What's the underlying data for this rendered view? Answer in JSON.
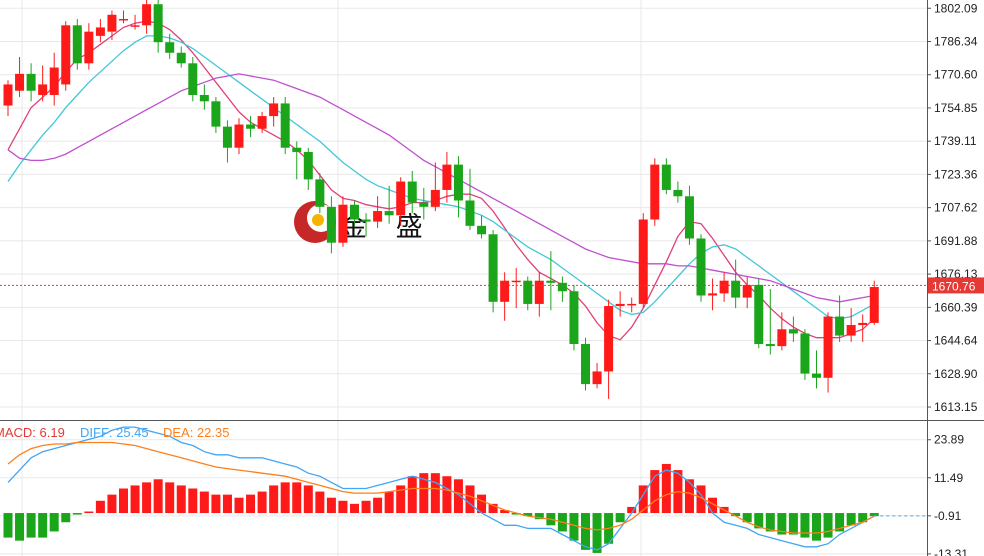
{
  "colors": {
    "up": "#ff1a1a",
    "down": "#1aa51a",
    "ma_short": "#e0407a",
    "ma_mid": "#42c7d9",
    "ma_long": "#c04fd0",
    "diff": "#42a5f5",
    "dea": "#ff7f1a",
    "grid": "#e8e8e8",
    "price_line": "#e53935",
    "axis": "#555555"
  },
  "watermark": {
    "icon": "coin-swirl-icon",
    "text": "金 盛"
  },
  "macd_legend": {
    "macd": "MACD: 6.19",
    "diff": "DIFF: 25.45",
    "dea": "DEA: 22.35"
  },
  "chart_data": [
    {
      "type": "candlestick",
      "y_ticks": [
        "1802.09",
        "1786.34",
        "1770.60",
        "1754.85",
        "1739.11",
        "1723.36",
        "1707.62",
        "1691.88",
        "1676.13",
        "1660.39",
        "1644.64",
        "1628.90",
        "1613.15"
      ],
      "ylim": [
        1607,
        1806
      ],
      "current_price": "1670.76",
      "candles": [
        [
          1756,
          1766,
          1751,
          1768
        ],
        [
          1763,
          1771,
          1760,
          1779
        ],
        [
          1771,
          1763,
          1758,
          1776
        ],
        [
          1761,
          1766,
          1758,
          1775
        ],
        [
          1761,
          1774,
          1756,
          1781
        ],
        [
          1766,
          1794,
          1763,
          1796
        ],
        [
          1794,
          1776,
          1773,
          1797
        ],
        [
          1776,
          1791,
          1773,
          1795
        ],
        [
          1789,
          1793,
          1786,
          1797
        ],
        [
          1791,
          1799,
          1787,
          1801
        ],
        [
          1797,
          1797,
          1795,
          1801
        ],
        [
          1794,
          1794,
          1792,
          1799
        ],
        [
          1794,
          1804,
          1790,
          1808
        ],
        [
          1804,
          1786,
          1781,
          1809
        ],
        [
          1786,
          1781,
          1778,
          1790
        ],
        [
          1781,
          1776,
          1774,
          1784
        ],
        [
          1776,
          1761,
          1758,
          1779
        ],
        [
          1761,
          1758,
          1754,
          1766
        ],
        [
          1758,
          1746,
          1743,
          1760
        ],
        [
          1746,
          1736,
          1729,
          1749
        ],
        [
          1736,
          1747,
          1733,
          1750
        ],
        [
          1747,
          1745,
          1741,
          1751
        ],
        [
          1745,
          1751,
          1743,
          1753
        ],
        [
          1751,
          1757,
          1746,
          1760
        ],
        [
          1757,
          1736,
          1733,
          1760
        ],
        [
          1736,
          1734,
          1721,
          1739
        ],
        [
          1734,
          1721,
          1716,
          1736
        ],
        [
          1721,
          1708,
          1705,
          1724
        ],
        [
          1708,
          1691,
          1686,
          1713
        ],
        [
          1691,
          1709,
          1689,
          1713
        ],
        [
          1709,
          1702,
          1699,
          1711
        ],
        [
          1702,
          1701,
          1694,
          1705
        ],
        [
          1701,
          1706,
          1698,
          1713
        ],
        [
          1706,
          1704,
          1700,
          1718
        ],
        [
          1704,
          1720,
          1699,
          1722
        ],
        [
          1720,
          1710,
          1705,
          1725
        ],
        [
          1710,
          1708,
          1702,
          1717
        ],
        [
          1708,
          1716,
          1706,
          1729
        ],
        [
          1716,
          1728,
          1710,
          1734
        ],
        [
          1728,
          1711,
          1703,
          1732
        ],
        [
          1711,
          1699,
          1697,
          1726
        ],
        [
          1699,
          1695,
          1693,
          1704
        ],
        [
          1695,
          1663,
          1658,
          1697
        ],
        [
          1663,
          1673,
          1654,
          1677
        ],
        [
          1673,
          1673,
          1660,
          1679
        ],
        [
          1673,
          1662,
          1659,
          1675
        ],
        [
          1662,
          1673,
          1656,
          1677
        ],
        [
          1673,
          1672,
          1659,
          1687
        ],
        [
          1672,
          1668,
          1663,
          1675
        ],
        [
          1668,
          1643,
          1640,
          1671
        ],
        [
          1643,
          1624,
          1621,
          1646
        ],
        [
          1624,
          1630,
          1622,
          1634
        ],
        [
          1630,
          1661,
          1617,
          1664
        ],
        [
          1661,
          1662,
          1656,
          1668
        ],
        [
          1662,
          1662,
          1658,
          1665
        ],
        [
          1662,
          1702,
          1660,
          1705
        ],
        [
          1702,
          1728,
          1699,
          1731
        ],
        [
          1728,
          1716,
          1714,
          1731
        ],
        [
          1716,
          1713,
          1710,
          1720
        ],
        [
          1713,
          1693,
          1690,
          1718
        ],
        [
          1693,
          1666,
          1663,
          1695
        ],
        [
          1666,
          1667,
          1659,
          1674
        ],
        [
          1667,
          1673,
          1663,
          1677
        ],
        [
          1673,
          1665,
          1660,
          1683
        ],
        [
          1665,
          1671,
          1660,
          1675
        ],
        [
          1671,
          1643,
          1641,
          1674
        ],
        [
          1643,
          1642,
          1638,
          1669
        ],
        [
          1642,
          1650,
          1640,
          1658
        ],
        [
          1650,
          1648,
          1644,
          1656
        ],
        [
          1648,
          1629,
          1626,
          1650
        ],
        [
          1629,
          1627,
          1622,
          1640
        ],
        [
          1627,
          1656,
          1620,
          1658
        ],
        [
          1656,
          1647,
          1644,
          1666
        ],
        [
          1647,
          1652,
          1644,
          1660
        ],
        [
          1652,
          1653,
          1644,
          1657
        ],
        [
          1653,
          1670,
          1652,
          1673
        ]
      ],
      "ma_short": [
        1735,
        1745,
        1755,
        1760,
        1765,
        1772,
        1778,
        1781,
        1785,
        1789,
        1793,
        1795,
        1796,
        1795,
        1792,
        1787,
        1781,
        1774,
        1767,
        1760,
        1753,
        1748,
        1745,
        1742,
        1739,
        1735,
        1730,
        1723,
        1716,
        1712,
        1711,
        1709,
        1708,
        1707,
        1708,
        1710,
        1710,
        1711,
        1713,
        1714,
        1714,
        1712,
        1706,
        1698,
        1690,
        1683,
        1677,
        1674,
        1671,
        1667,
        1661,
        1653,
        1647,
        1645,
        1651,
        1660,
        1671,
        1682,
        1694,
        1701,
        1700,
        1693,
        1685,
        1677,
        1671,
        1666,
        1660,
        1655,
        1651,
        1648,
        1646,
        1646,
        1646,
        1648,
        1650,
        1655
      ],
      "ma_mid": [
        1720,
        1728,
        1735,
        1742,
        1748,
        1755,
        1761,
        1767,
        1772,
        1777,
        1782,
        1786,
        1789,
        1789,
        1788,
        1786,
        1783,
        1779,
        1775,
        1771,
        1767,
        1763,
        1759,
        1755,
        1751,
        1747,
        1743,
        1739,
        1734,
        1729,
        1725,
        1721,
        1718,
        1716,
        1714,
        1712,
        1711,
        1710,
        1709,
        1708,
        1706,
        1704,
        1701,
        1697,
        1693,
        1689,
        1686,
        1683,
        1679,
        1675,
        1671,
        1667,
        1663,
        1659,
        1657,
        1658,
        1663,
        1669,
        1675,
        1681,
        1686,
        1689,
        1690,
        1688,
        1684,
        1680,
        1676,
        1672,
        1668,
        1664,
        1660,
        1656,
        1655,
        1656,
        1659,
        1662
      ],
      "ma_long": [
        1735,
        1731,
        1730,
        1730,
        1731,
        1733,
        1736,
        1739,
        1742,
        1745,
        1748,
        1751,
        1754,
        1757,
        1760,
        1763,
        1765,
        1767,
        1769,
        1770,
        1771,
        1770,
        1769,
        1768,
        1766,
        1764,
        1762,
        1760,
        1757,
        1754,
        1751,
        1748,
        1745,
        1742,
        1738,
        1734,
        1730,
        1727,
        1724,
        1721,
        1718,
        1715,
        1712,
        1709,
        1706,
        1703,
        1700,
        1697,
        1694,
        1691,
        1688,
        1686,
        1684,
        1683,
        1682,
        1681,
        1681,
        1681,
        1680,
        1680,
        1679,
        1678,
        1677,
        1676,
        1675,
        1674,
        1673,
        1671,
        1669,
        1667,
        1665,
        1664,
        1663,
        1664,
        1665,
        1666
      ]
    },
    {
      "type": "macd",
      "y_ticks": [
        "23.89",
        "11.49",
        "-0.91",
        "-13.31"
      ],
      "ylim": [
        -14,
        30
      ],
      "zero_label": "-0.91",
      "histogram": [
        -8,
        -9,
        -8,
        -8,
        -6,
        -3,
        -0.5,
        0.5,
        4,
        6,
        8,
        9,
        10,
        11,
        10,
        9,
        8,
        7,
        6,
        6,
        5,
        6,
        7,
        9,
        10,
        10,
        9,
        7,
        5,
        4,
        3,
        4,
        5,
        7,
        9,
        12,
        13,
        13,
        12,
        11,
        9,
        6,
        3,
        1,
        -0.5,
        -1,
        -2,
        -4,
        -6,
        -9,
        -12,
        -13,
        -10,
        -3,
        2,
        9,
        14,
        16,
        14,
        11,
        9,
        5,
        2,
        -1,
        -3,
        -5,
        -6,
        -7,
        -7,
        -8,
        -9,
        -8,
        -6,
        -4,
        -3,
        -1
      ],
      "diff": [
        10,
        14,
        18,
        20,
        21,
        22,
        23,
        24,
        25,
        27,
        28,
        28,
        27,
        26,
        25,
        23,
        22,
        20,
        19,
        19,
        18,
        18,
        18,
        17,
        16,
        15,
        13,
        12,
        10,
        8,
        8,
        8,
        9,
        10,
        11,
        12,
        11,
        10,
        8,
        6,
        3,
        0,
        -2,
        -4,
        -4,
        -5,
        -5,
        -5,
        -7,
        -9,
        -11,
        -12,
        -10,
        -5,
        0,
        6,
        12,
        14,
        13,
        10,
        6,
        0,
        -3,
        -4,
        -5,
        -7,
        -8,
        -9,
        -10,
        -11,
        -11,
        -10,
        -7,
        -5,
        -3,
        -1
      ],
      "dea": [
        16,
        19,
        21,
        22,
        22.5,
        22.5,
        23,
        23,
        23,
        23,
        22.5,
        22,
        21,
        20,
        19,
        18,
        17,
        16,
        15,
        14.5,
        14,
        13.5,
        13,
        12.5,
        12,
        11,
        10,
        9,
        8,
        7,
        6.5,
        6.5,
        6.5,
        7,
        7.5,
        8,
        8,
        8,
        7.5,
        6.5,
        5.5,
        4,
        2.5,
        1,
        0,
        -1,
        -1.5,
        -2,
        -3,
        -4,
        -5,
        -5.5,
        -5,
        -4,
        -2,
        1,
        4,
        6,
        7,
        6.5,
        5,
        3,
        1,
        -1,
        -3,
        -4.5,
        -5.5,
        -6,
        -6.5,
        -6.5,
        -6.5,
        -6,
        -5,
        -4,
        -3,
        -1
      ]
    }
  ]
}
